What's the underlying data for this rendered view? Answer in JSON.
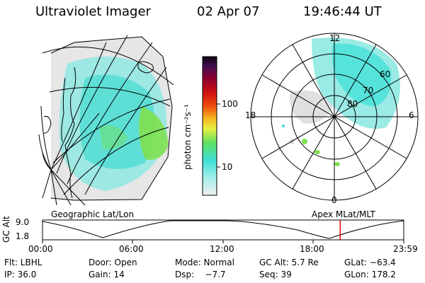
{
  "header": {
    "title": "Ultraviolet Imager",
    "date": "02 Apr 07",
    "time": "19:46:44 UT"
  },
  "colorbar": {
    "label": "photon cm⁻²s⁻¹",
    "ticks": [
      {
        "label": "100",
        "value": 100
      },
      {
        "label": "10",
        "value": 10
      }
    ]
  },
  "left_panel": {
    "caption": "Geographic Lat/Lon"
  },
  "right_panel": {
    "caption": "Apex MLat/MLT",
    "mlt_labels": {
      "top": "12",
      "left": "18",
      "right": "6",
      "bottom": "0"
    },
    "lat_labels": [
      "60",
      "70",
      "80"
    ]
  },
  "timeline": {
    "axis_label": "GC Alt",
    "ytick_top": "9.0",
    "ytick_bottom": "1.8",
    "time_ticks": [
      "00:00",
      "06:00",
      "12:00",
      "18:00",
      "23:59"
    ],
    "current_time_marker_hours": 19.78
  },
  "status": {
    "filter": "Flt: LBHL",
    "door": "Door: Open",
    "mode": "Mode: Normal",
    "gc_alt": "GC Alt: 5.7 Re",
    "glat": "GLat: −63.4",
    "ip": "IP: 36.0",
    "gain": "Gain: 14",
    "dsp": "Dsp:    −7.7",
    "seq": "Seq: 39",
    "glon": "GLon: 178.2"
  },
  "colors": {
    "aurora_cyan": "#3fe0d8",
    "aurora_gray": "#d8d8d8",
    "aurora_green": "#7fe050",
    "marker_red": "#e00000"
  }
}
